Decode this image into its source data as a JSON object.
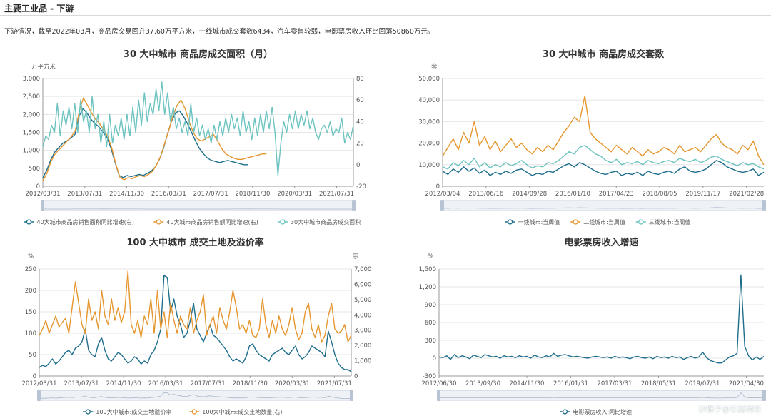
{
  "header": {
    "title": "主要工业品 - 下游",
    "summary": "下游情况，截至2022年03月，商品房交易回升37.60万平方米，一线城市成交套数6434，汽车零售较弱，电影票房收入环比回落50860万元。"
  },
  "watermark": "沙推子@东吴明彩",
  "colors": {
    "blue": "#1f6e8c",
    "orange": "#e6962f",
    "teal": "#6cc3c0"
  },
  "chart_data": [
    {
      "type": "line",
      "title": "30 大中城市 商品房成交面积（月）",
      "yunit_left": "万平方米",
      "yunit_right": "",
      "ylim_left": [
        0,
        3000
      ],
      "ylim_right": [
        -20,
        80
      ],
      "yticks_left": [
        "0",
        "500",
        "1,000",
        "1,500",
        "2,000",
        "2,500",
        "3,000"
      ],
      "yticks_right": [
        "-20",
        "0",
        "20",
        "40",
        "60",
        "80"
      ],
      "xticks": [
        "2012/03/31",
        "2013/07/31",
        "2014/11/30",
        "2016/03/31",
        "2017/07/31",
        "2018/11/30",
        "2020/03/31",
        "2021/07/31"
      ],
      "x_start": "2012/03/31",
      "x_end": "2022/03/31",
      "legend": [
        "40大城市商品房销售面积同比增速(右)",
        "40大城市商品房销售额同比增速(右)",
        "30大中城市商品房成交面积"
      ],
      "series": [
        {
          "name": "40大城市商品房销售面积同比增速(右)",
          "color": "#1f6e8c",
          "axis": "right",
          "x_range": [
            0.0,
            0.66
          ],
          "values": [
            -12,
            -5,
            5,
            12,
            16,
            20,
            22,
            25,
            28,
            45,
            52,
            48,
            42,
            38,
            35,
            30,
            25,
            15,
            2,
            -10,
            -12,
            -10,
            -11,
            -10,
            -9,
            -10,
            -8,
            -6,
            -2,
            5,
            15,
            28,
            40,
            48,
            50,
            45,
            38,
            30,
            22,
            15,
            10,
            6,
            4,
            3,
            2,
            3,
            4,
            3,
            2,
            1,
            0,
            0
          ]
        },
        {
          "name": "40大城市商品房销售额同比增速(右)",
          "color": "#e6962f",
          "axis": "right",
          "x_range": [
            0.0,
            0.72
          ],
          "values": [
            -15,
            -8,
            3,
            10,
            14,
            18,
            22,
            26,
            32,
            50,
            62,
            55,
            48,
            42,
            38,
            32,
            26,
            15,
            0,
            -12,
            -14,
            -12,
            -13,
            -11,
            -10,
            -11,
            -9,
            -6,
            0,
            8,
            20,
            32,
            45,
            55,
            60,
            52,
            40,
            30,
            24,
            22,
            24,
            26,
            28,
            22,
            15,
            10,
            8,
            6,
            5,
            5,
            6,
            7,
            8,
            9,
            10,
            10
          ]
        },
        {
          "name": "30大中城市商品房成交面积",
          "color": "#6cc3c0",
          "axis": "left",
          "x_range": [
            0.0,
            1.0
          ],
          "values": [
            1100,
            1400,
            1300,
            1700,
            1500,
            2300,
            1400,
            2100,
            1700,
            2200,
            1600,
            2300,
            1500,
            2400,
            1800,
            2100,
            1500,
            2500,
            1600,
            2000,
            1200,
            1800,
            1100,
            2000,
            1200,
            1700,
            1400,
            1900,
            1300,
            2000,
            1400,
            2200,
            1500,
            2400,
            1700,
            2600,
            1800,
            2300,
            2000,
            2700,
            2100,
            2900,
            2000,
            2600,
            1800,
            2200,
            1600,
            1900,
            1500,
            1800,
            1400,
            2300,
            1500,
            1900,
            1400,
            1700,
            1300,
            1600,
            1200,
            1700,
            1300,
            1800,
            1400,
            1900,
            1500,
            2000,
            1600,
            1900,
            1400,
            2100,
            1500,
            1800,
            1300,
            1900,
            1400,
            2000,
            1500,
            2100,
            1600,
            2200,
            1500,
            300,
            1200,
            1800,
            1500,
            2000,
            1600,
            2100,
            1600,
            2000,
            1700,
            2100,
            1600,
            1900,
            1500,
            1300,
            1600,
            1700,
            1500,
            1800,
            1400,
            1600,
            1500,
            1900,
            1200,
            1500,
            1300,
            1700
          ]
        }
      ]
    },
    {
      "type": "line",
      "title": "30 大中城市 商品房成交套数",
      "yunit_left": "套",
      "ylim_left": [
        0,
        50000
      ],
      "yticks_left": [
        "0",
        "10,000",
        "20,000",
        "30,000",
        "40,000",
        "50,000"
      ],
      "xticks": [
        "2012/03/04",
        "2013/06/16",
        "2014/09/28",
        "2016/01/10",
        "2017/04/23",
        "2018/08/05",
        "2019/11/17",
        "2021/02/28"
      ],
      "x_start": "2012/03/04",
      "x_end": "2022/03/27",
      "legend": [
        "一线城市:当周值",
        "二线城市:当周值",
        "三线城市:当周值"
      ],
      "series": [
        {
          "name": "一线城市:当周值",
          "color": "#1f6e8c",
          "axis": "left",
          "x_range": [
            0,
            1
          ],
          "values": [
            7000,
            5500,
            8000,
            6500,
            9000,
            7000,
            8500,
            6000,
            7500,
            5000,
            6500,
            5500,
            7000,
            6000,
            7500,
            8000,
            6500,
            5000,
            6000,
            5500,
            7000,
            6500,
            8000,
            9500,
            10500,
            9000,
            11000,
            10000,
            8500,
            7000,
            6000,
            5500,
            6500,
            7000,
            5000,
            6000,
            5500,
            6500,
            5000,
            7000,
            6000,
            5500,
            6500,
            7000,
            6000,
            8000,
            9000,
            7000,
            6500,
            7000,
            8000,
            10000,
            12000,
            11000,
            9000,
            8000,
            7000,
            6500,
            7000,
            8000,
            5000,
            6500
          ]
        },
        {
          "name": "二线城市:当周值",
          "color": "#e6962f",
          "axis": "left",
          "x_range": [
            0,
            1
          ],
          "values": [
            14000,
            18000,
            22000,
            17000,
            25000,
            20000,
            30000,
            19000,
            23000,
            17000,
            21000,
            16000,
            19000,
            22000,
            18000,
            20000,
            17000,
            15000,
            18000,
            16000,
            19000,
            17000,
            21000,
            25000,
            28000,
            32000,
            30000,
            42000,
            25000,
            22000,
            20000,
            18000,
            16000,
            19000,
            17000,
            15000,
            18000,
            16000,
            14000,
            17000,
            15000,
            16000,
            18000,
            17000,
            15000,
            19000,
            16000,
            17000,
            18000,
            16000,
            19000,
            22000,
            24000,
            20000,
            18000,
            17000,
            15000,
            19000,
            17000,
            21000,
            14000,
            10000
          ]
        },
        {
          "name": "三线城市:当周值",
          "color": "#6cc3c0",
          "axis": "left",
          "x_range": [
            0,
            1
          ],
          "values": [
            9000,
            8000,
            11000,
            9500,
            12000,
            10000,
            13000,
            9000,
            11000,
            8500,
            10000,
            9000,
            11000,
            9500,
            10500,
            12000,
            10000,
            8500,
            9500,
            9000,
            11000,
            10500,
            12000,
            14000,
            16000,
            15000,
            18000,
            19000,
            17000,
            15000,
            14000,
            12000,
            11000,
            12500,
            10000,
            11000,
            10500,
            11500,
            10000,
            12000,
            11000,
            10500,
            11500,
            12000,
            11000,
            13000,
            12000,
            11500,
            12500,
            11000,
            12000,
            13500,
            14000,
            12500,
            11500,
            10500,
            9500,
            11000,
            10000,
            10500,
            9000,
            8000
          ]
        }
      ]
    },
    {
      "type": "line",
      "title": "100 大中城市 成交土地及溢价率",
      "yunit_left": "%",
      "yunit_right": "宗",
      "ylim_left": [
        0,
        250
      ],
      "ylim_right": [
        0,
        7000
      ],
      "yticks_left": [
        "0",
        "50",
        "100",
        "150",
        "200",
        "250"
      ],
      "yticks_right": [
        "0",
        "1,000",
        "2,000",
        "3,000",
        "4,000",
        "5,000",
        "6,000",
        "7,000"
      ],
      "xticks": [
        "2012/03/31",
        "2013/07/31",
        "2014/11/30",
        "2016/03/31",
        "2017/07/31",
        "2018/11/30",
        "2020/03/31",
        "2021/07/31"
      ],
      "x_start": "2012/03/31",
      "x_end": "2022/03/31",
      "legend": [
        "100大中城市:成交土地溢价率",
        "100大中城市:成交土地数量(右)"
      ],
      "series": [
        {
          "name": "100大中城市:成交土地溢价率",
          "color": "#1f6e8c",
          "axis": "left",
          "x_range": [
            0,
            1
          ],
          "values": [
            20,
            25,
            22,
            30,
            40,
            28,
            35,
            45,
            55,
            60,
            50,
            65,
            70,
            80,
            110,
            60,
            50,
            45,
            75,
            90,
            60,
            40,
            35,
            45,
            55,
            50,
            40,
            30,
            35,
            45,
            40,
            28,
            35,
            30,
            50,
            60,
            80,
            110,
            235,
            230,
            150,
            180,
            140,
            120,
            90,
            100,
            130,
            170,
            110,
            95,
            80,
            100,
            120,
            95,
            90,
            80,
            70,
            60,
            45,
            35,
            40,
            35,
            30,
            45,
            70,
            75,
            60,
            50,
            45,
            40,
            35,
            50,
            55,
            60,
            65,
            55,
            50,
            60,
            70,
            50,
            40,
            45,
            55,
            70,
            65,
            60,
            55,
            45,
            105,
            80,
            50,
            30,
            20,
            15,
            15,
            10
          ]
        },
        {
          "name": "100大中城市:成交土地数量(右)",
          "color": "#e6962f",
          "axis": "left",
          "x_range": [
            0,
            1
          ],
          "values": [
            95,
            110,
            130,
            100,
            120,
            140,
            115,
            125,
            135,
            100,
            160,
            220,
            170,
            120,
            100,
            180,
            130,
            150,
            110,
            200,
            140,
            120,
            180,
            130,
            160,
            125,
            150,
            245,
            120,
            100,
            130,
            90,
            140,
            120,
            180,
            100,
            200,
            110,
            150,
            90,
            170,
            130,
            100,
            140,
            120,
            110,
            160,
            100,
            130,
            150,
            190,
            95,
            120,
            140,
            100,
            160,
            130,
            110,
            150,
            200,
            160,
            110,
            120,
            100,
            130,
            95,
            90,
            110,
            180,
            120,
            90,
            130,
            100,
            140,
            110,
            95,
            120,
            160,
            110,
            85,
            100,
            150,
            170,
            110,
            90,
            120,
            80,
            95,
            140,
            170,
            110,
            100,
            105,
            120,
            80,
            95
          ]
        }
      ]
    },
    {
      "type": "line",
      "title": "电影票房收入增速",
      "yunit_left": "%",
      "ylim_left": [
        -300,
        1500
      ],
      "yticks_left": [
        "-300",
        "0",
        "300",
        "600",
        "900",
        "1,200",
        "1,500"
      ],
      "xticks": [
        "2012/06/30",
        "2013/09/30",
        "2014/11/30",
        "2016/01/31",
        "2017/03/31",
        "2018/05/31",
        "2019/07/31",
        "2021/04/30"
      ],
      "x_start": "2012/06/30",
      "x_end": "2022/03/31",
      "legend": [
        "电影票房收入:同比增速"
      ],
      "series": [
        {
          "name": "电影票房收入:同比增速",
          "color": "#1f6e8c",
          "axis": "left",
          "x_range": [
            0,
            1
          ],
          "values": [
            20,
            10,
            40,
            -20,
            60,
            10,
            40,
            20,
            -10,
            50,
            30,
            10,
            60,
            40,
            20,
            30,
            0,
            40,
            20,
            30,
            10,
            40,
            20,
            30,
            0,
            50,
            20,
            10,
            40,
            20,
            80,
            30,
            50,
            60,
            40,
            20,
            30,
            20,
            10,
            0,
            20,
            30,
            20,
            10,
            20,
            0,
            30,
            10,
            20,
            10,
            -10,
            20,
            30,
            10,
            0,
            20,
            -10,
            30,
            10,
            20,
            0,
            30,
            10,
            20,
            -20,
            10,
            30,
            0,
            20,
            100,
            10,
            -40,
            -60,
            -80,
            -80,
            -30,
            20,
            40,
            80,
            1400,
            200,
            40,
            -30,
            20,
            -20,
            30
          ]
        }
      ]
    }
  ]
}
